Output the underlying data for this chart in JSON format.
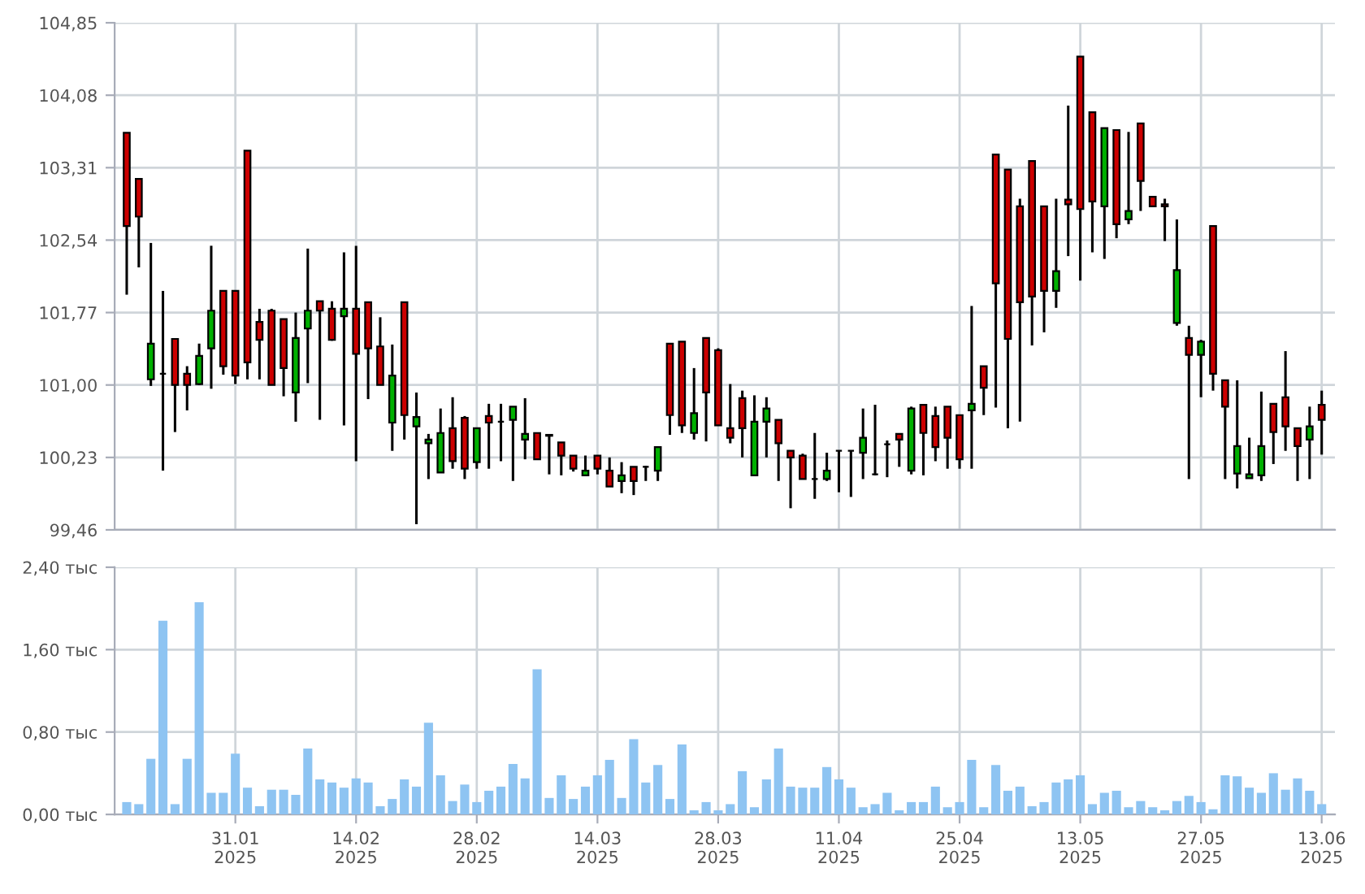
{
  "chart_data": [
    {
      "type": "candlestick",
      "categories": [
        null,
        null,
        null,
        null,
        null,
        null,
        null,
        null,
        null,
        null,
        null,
        null,
        null,
        null,
        null,
        null,
        null,
        null,
        null,
        null,
        null,
        null,
        null,
        null,
        null,
        null,
        null,
        null,
        null,
        null,
        null,
        null,
        null,
        null,
        null,
        null,
        null,
        null,
        null,
        null,
        null,
        null,
        null,
        null,
        null,
        null,
        null,
        null,
        null,
        null,
        null,
        null,
        null,
        null,
        null,
        null,
        null,
        null,
        null,
        null,
        null,
        null,
        null,
        null,
        null,
        null,
        null,
        null,
        null,
        null,
        null,
        null,
        null,
        null,
        null,
        null,
        null,
        null,
        null,
        null,
        null,
        null,
        null,
        null,
        null,
        null,
        null,
        null,
        null,
        null,
        null,
        null,
        null,
        null,
        null,
        null,
        null,
        null,
        null,
        null
      ],
      "ohlc": [
        [
          103.68,
          103.68,
          101.96,
          102.69
        ],
        [
          103.19,
          103.19,
          102.25,
          102.79
        ],
        [
          101.06,
          102.51,
          100.99,
          101.44
        ],
        [
          101.12,
          102.0,
          100.09,
          101.12
        ],
        [
          101.49,
          101.49,
          100.5,
          101.0
        ],
        [
          101.12,
          101.2,
          100.73,
          101.0
        ],
        [
          101.01,
          101.44,
          101.0,
          101.31
        ],
        [
          101.39,
          102.48,
          100.96,
          101.79
        ],
        [
          102.0,
          102.0,
          101.11,
          101.2
        ],
        [
          102.0,
          102.0,
          101.01,
          101.1
        ],
        [
          103.49,
          103.49,
          101.06,
          101.24
        ],
        [
          101.67,
          101.81,
          101.06,
          101.48
        ],
        [
          101.79,
          101.81,
          101.0,
          101.0
        ],
        [
          101.7,
          101.7,
          100.88,
          101.18
        ],
        [
          100.92,
          101.77,
          100.61,
          101.5
        ],
        [
          101.6,
          102.45,
          101.02,
          101.79
        ],
        [
          101.89,
          101.89,
          100.63,
          101.79
        ],
        [
          101.81,
          101.89,
          101.47,
          101.48
        ],
        [
          101.73,
          102.41,
          100.57,
          101.81
        ],
        [
          101.81,
          102.48,
          100.19,
          101.33
        ],
        [
          101.88,
          101.88,
          100.85,
          101.39
        ],
        [
          101.41,
          101.72,
          101.0,
          101.0
        ],
        [
          100.6,
          101.43,
          100.3,
          101.1
        ],
        [
          101.88,
          101.88,
          100.42,
          100.68
        ],
        [
          100.56,
          100.92,
          99.52,
          100.66
        ],
        [
          100.38,
          100.48,
          100.0,
          100.42
        ],
        [
          100.07,
          100.75,
          100.07,
          100.49
        ],
        [
          100.54,
          100.87,
          100.11,
          100.19
        ],
        [
          100.65,
          100.67,
          100.0,
          100.11
        ],
        [
          100.18,
          100.54,
          100.11,
          100.54
        ],
        [
          100.67,
          100.8,
          100.11,
          100.6
        ],
        [
          100.61,
          100.8,
          100.19,
          100.61
        ],
        [
          100.63,
          100.77,
          99.98,
          100.77
        ],
        [
          100.42,
          100.86,
          100.21,
          100.48
        ],
        [
          100.49,
          100.49,
          100.21,
          100.21
        ],
        [
          100.47,
          100.47,
          100.05,
          100.46
        ],
        [
          100.39,
          100.39,
          100.04,
          100.25
        ],
        [
          100.25,
          100.25,
          100.08,
          100.11
        ],
        [
          100.04,
          100.25,
          100.04,
          100.09
        ],
        [
          100.25,
          100.25,
          100.05,
          100.11
        ],
        [
          100.09,
          100.23,
          99.92,
          99.92
        ],
        [
          99.98,
          100.18,
          99.85,
          100.04
        ],
        [
          100.13,
          100.13,
          99.83,
          99.98
        ],
        [
          100.13,
          100.14,
          99.98,
          100.13
        ],
        [
          100.09,
          100.35,
          99.98,
          100.34
        ],
        [
          101.44,
          101.44,
          100.47,
          100.68
        ],
        [
          101.46,
          101.46,
          100.49,
          100.57
        ],
        [
          100.49,
          101.18,
          100.42,
          100.7
        ],
        [
          101.5,
          101.5,
          100.4,
          100.92
        ],
        [
          101.37,
          101.39,
          100.57,
          100.57
        ],
        [
          100.54,
          101.01,
          100.38,
          100.44
        ],
        [
          100.86,
          100.94,
          100.23,
          100.54
        ],
        [
          100.04,
          100.89,
          100.04,
          100.61
        ],
        [
          100.61,
          100.87,
          100.23,
          100.75
        ],
        [
          100.63,
          100.63,
          99.98,
          100.38
        ],
        [
          100.3,
          100.3,
          99.69,
          100.23
        ],
        [
          100.25,
          100.27,
          100.0,
          100.0
        ],
        [
          100.0,
          100.49,
          99.79,
          100.0
        ],
        [
          100.0,
          100.28,
          99.98,
          100.09
        ],
        [
          100.3,
          100.3,
          99.86,
          100.3
        ],
        [
          100.3,
          100.3,
          99.81,
          100.3
        ],
        [
          100.28,
          100.75,
          100.0,
          100.44
        ],
        [
          100.05,
          100.79,
          100.04,
          100.05
        ],
        [
          100.37,
          100.41,
          100.02,
          100.37
        ],
        [
          100.48,
          100.48,
          100.13,
          100.42
        ],
        [
          100.09,
          100.77,
          100.05,
          100.75
        ],
        [
          100.79,
          100.79,
          100.04,
          100.49
        ],
        [
          100.67,
          100.77,
          100.19,
          100.34
        ],
        [
          100.77,
          100.77,
          100.11,
          100.44
        ],
        [
          100.68,
          100.68,
          100.11,
          100.21
        ],
        [
          100.73,
          101.84,
          100.11,
          100.8
        ],
        [
          101.2,
          101.2,
          100.68,
          100.97
        ],
        [
          103.45,
          103.45,
          100.76,
          102.08
        ],
        [
          103.29,
          103.29,
          100.54,
          101.49
        ],
        [
          102.9,
          102.98,
          100.61,
          101.88
        ],
        [
          103.38,
          103.38,
          101.42,
          101.94
        ],
        [
          102.9,
          102.9,
          101.56,
          102.0
        ],
        [
          102.0,
          102.98,
          101.82,
          102.21
        ],
        [
          102.97,
          103.97,
          102.37,
          102.92
        ],
        [
          104.49,
          104.49,
          102.11,
          102.87
        ],
        [
          103.9,
          103.9,
          102.41,
          102.95
        ],
        [
          102.9,
          103.73,
          102.34,
          103.73
        ],
        [
          103.71,
          103.71,
          102.56,
          102.71
        ],
        [
          102.76,
          103.69,
          102.71,
          102.85
        ],
        [
          103.78,
          103.78,
          102.85,
          103.17
        ],
        [
          103.0,
          103.0,
          102.9,
          102.9
        ],
        [
          102.92,
          102.98,
          102.53,
          102.9
        ],
        [
          101.66,
          102.76,
          101.63,
          102.22
        ],
        [
          101.5,
          101.63,
          100.0,
          101.32
        ],
        [
          101.32,
          101.48,
          100.87,
          101.46
        ],
        [
          102.69,
          102.69,
          100.94,
          101.12
        ],
        [
          101.05,
          101.05,
          100.0,
          100.77
        ],
        [
          100.06,
          101.05,
          99.9,
          100.35
        ],
        [
          100.01,
          100.44,
          100.01,
          100.05
        ],
        [
          100.04,
          100.93,
          99.98,
          100.35
        ],
        [
          100.8,
          100.8,
          100.16,
          100.5
        ],
        [
          100.87,
          101.36,
          100.3,
          100.56
        ],
        [
          100.54,
          100.54,
          99.98,
          100.35
        ],
        [
          100.42,
          100.77,
          100.0,
          100.56
        ],
        [
          100.79,
          100.94,
          100.26,
          100.63
        ]
      ],
      "colors": [
        "#cc0000",
        "#cc0000",
        "#00b000",
        "#000000",
        "#cc0000",
        "#cc0000",
        "#00b000",
        "#00b000",
        "#cc0000",
        "#cc0000",
        "#cc0000",
        "#cc0000",
        "#cc0000",
        "#cc0000",
        "#00b000",
        "#00b000",
        "#cc0000",
        "#cc0000",
        "#00b000",
        "#cc0000",
        "#cc0000",
        "#cc0000",
        "#00b000",
        "#cc0000",
        "#00b000",
        "#00b000",
        "#00b000",
        "#cc0000",
        "#cc0000",
        "#00b000",
        "#cc0000",
        "#000000",
        "#00b000",
        "#00b000",
        "#cc0000",
        "#cc0000",
        "#cc0000",
        "#cc0000",
        "#00b000",
        "#cc0000",
        "#cc0000",
        "#00b000",
        "#cc0000",
        "#000000",
        "#00b000",
        "#cc0000",
        "#cc0000",
        "#00b000",
        "#cc0000",
        "#cc0000",
        "#cc0000",
        "#cc0000",
        "#00b000",
        "#00b000",
        "#cc0000",
        "#cc0000",
        "#cc0000",
        "#000000",
        "#00b000",
        "#000000",
        "#000000",
        "#00b000",
        "#000000",
        "#000000",
        "#cc0000",
        "#00b000",
        "#cc0000",
        "#cc0000",
        "#cc0000",
        "#cc0000",
        "#00b000",
        "#cc0000",
        "#cc0000",
        "#cc0000",
        "#cc0000",
        "#cc0000",
        "#cc0000",
        "#00b000",
        "#cc0000",
        "#cc0000",
        "#cc0000",
        "#00b000",
        "#cc0000",
        "#00b000",
        "#cc0000",
        "#cc0000",
        "#cc0000",
        "#00b000",
        "#cc0000",
        "#00b000",
        "#cc0000",
        "#cc0000",
        "#00b000",
        "#00b000",
        "#00b000",
        "#cc0000",
        "#cc0000",
        "#cc0000",
        "#00b000",
        "#cc0000"
      ],
      "ylim": [
        99.46,
        104.85
      ],
      "yticks": [
        {
          "value": 99.46,
          "label": "99,46"
        },
        {
          "value": 100.23,
          "label": "100,23"
        },
        {
          "value": 101.0,
          "label": "101,00"
        },
        {
          "value": 101.77,
          "label": "101,77"
        },
        {
          "value": 102.54,
          "label": "102,54"
        },
        {
          "value": 103.31,
          "label": "103,31"
        },
        {
          "value": 104.08,
          "label": "104,08"
        },
        {
          "value": 104.85,
          "label": "104,85"
        }
      ],
      "grid": true,
      "tick_labels": "y"
    },
    {
      "type": "bar",
      "categories": [
        null,
        null,
        null,
        null,
        null,
        null,
        null,
        null,
        null,
        "31.01\n2025",
        null,
        null,
        null,
        null,
        null,
        null,
        null,
        null,
        null,
        "14.02\n2025",
        null,
        null,
        null,
        null,
        null,
        null,
        null,
        null,
        null,
        "28.02\n2025",
        null,
        null,
        null,
        null,
        null,
        null,
        null,
        null,
        null,
        "14.03\n2025",
        null,
        null,
        null,
        null,
        null,
        null,
        null,
        null,
        null,
        "28.03\n2025",
        null,
        null,
        null,
        null,
        null,
        null,
        null,
        null,
        null,
        "11.04\n2025",
        null,
        null,
        null,
        null,
        null,
        null,
        null,
        null,
        null,
        "25.04\n2025",
        null,
        null,
        null,
        null,
        null,
        null,
        null,
        null,
        null,
        "13.05\n2025",
        null,
        null,
        null,
        null,
        null,
        null,
        null,
        null,
        null,
        "27.05\n2025",
        null,
        null,
        null,
        null,
        null,
        null,
        null,
        null,
        null,
        "13.06\n2025"
      ],
      "values": [
        0.12,
        0.1,
        0.54,
        1.88,
        0.1,
        0.54,
        2.06,
        0.21,
        0.21,
        0.59,
        0.26,
        0.08,
        0.24,
        0.24,
        0.19,
        0.64,
        0.34,
        0.31,
        0.26,
        0.35,
        0.31,
        0.08,
        0.15,
        0.34,
        0.27,
        0.89,
        0.38,
        0.13,
        0.29,
        0.12,
        0.23,
        0.27,
        0.49,
        0.35,
        1.41,
        0.16,
        0.38,
        0.15,
        0.27,
        0.38,
        0.53,
        0.16,
        0.73,
        0.31,
        0.48,
        0.15,
        0.68,
        0.04,
        0.12,
        0.04,
        0.1,
        0.42,
        0.07,
        0.34,
        0.64,
        0.27,
        0.26,
        0.26,
        0.46,
        0.34,
        0.26,
        0.07,
        0.1,
        0.21,
        0.04,
        0.12,
        0.12,
        0.27,
        0.07,
        0.12,
        0.53,
        0.07,
        0.48,
        0.23,
        0.27,
        0.08,
        0.12,
        0.31,
        0.34,
        0.38,
        0.1,
        0.21,
        0.23,
        0.07,
        0.13,
        0.07,
        0.04,
        0.13,
        0.18,
        0.12,
        0.05,
        0.38,
        0.37,
        0.26,
        0.21,
        0.4,
        0.24,
        0.35,
        0.23,
        0.1
      ],
      "color": "#8ec4f2",
      "ylim": [
        0,
        2.4
      ],
      "yticks": [
        {
          "value": 0,
          "label": "0,00 тыс"
        },
        {
          "value": 0.8,
          "label": "0,80 тыс"
        },
        {
          "value": 1.6,
          "label": "1,60 тыс"
        },
        {
          "value": 2.4,
          "label": "2,40 тыс"
        }
      ],
      "grid": true
    }
  ]
}
